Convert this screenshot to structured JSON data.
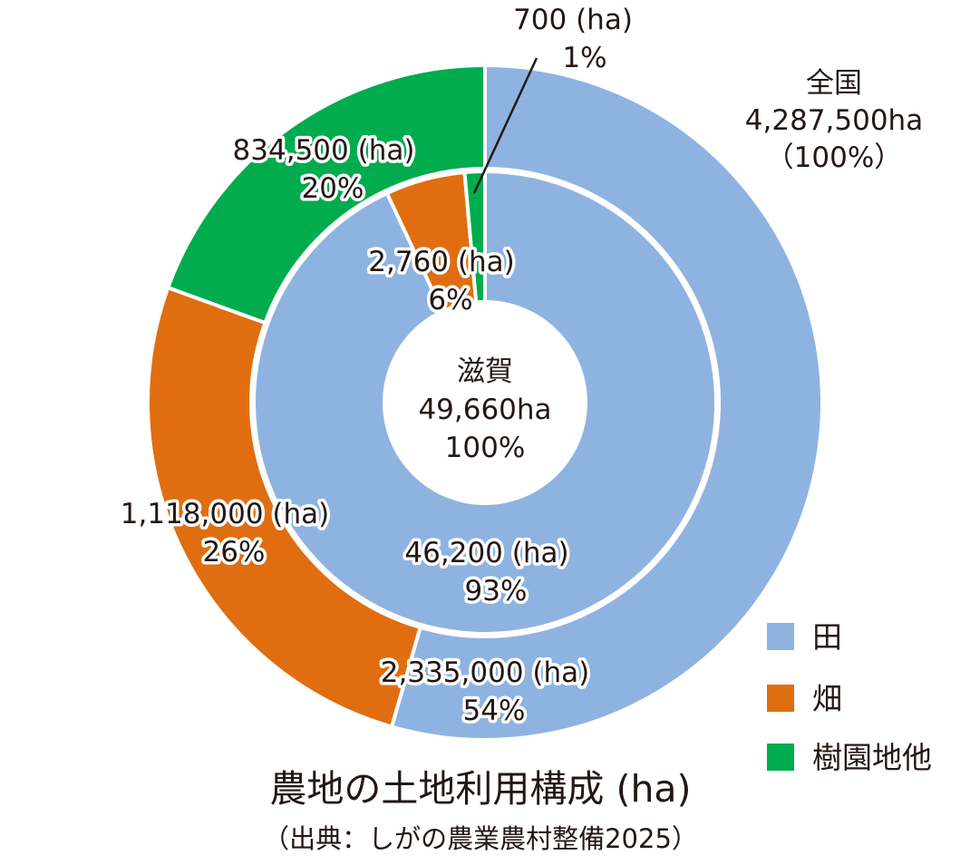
{
  "chart_data": {
    "type": "pie",
    "title": "農地の土地利用構成 (ha)",
    "subtitle": "（出典：しがの農業農村整備2025）",
    "legend_position": "bottom-right",
    "categories": [
      "田",
      "畑",
      "樹園地他"
    ],
    "colors": [
      "#8eb3e1",
      "#e06e10",
      "#00ac4e"
    ],
    "rings": [
      {
        "ring": "outer",
        "name": "全国",
        "total_label": "4,287,500ha",
        "total_pct_label": "（100%）",
        "values": [
          2335000,
          1118000,
          834500
        ],
        "value_labels": [
          "2,335,000 (ha)",
          "1,118,000 (ha)",
          "834,500 (ha)"
        ],
        "pct_labels": [
          "54%",
          "26%",
          "20%"
        ]
      },
      {
        "ring": "inner",
        "name": "滋賀",
        "total_label": "49,660ha",
        "total_pct_label": "100%",
        "values": [
          46200,
          2760,
          700
        ],
        "value_labels": [
          "46,200 (ha)",
          "2,760 (ha)",
          "700 (ha)"
        ],
        "pct_labels": [
          "93%",
          "6%",
          "1%"
        ]
      }
    ]
  }
}
